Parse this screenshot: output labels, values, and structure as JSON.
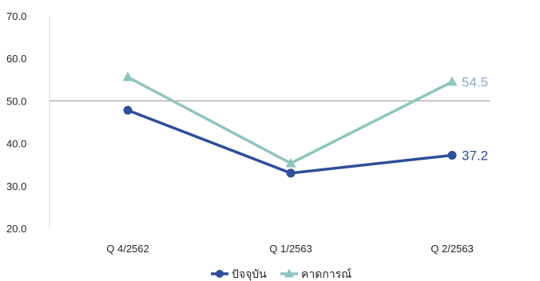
{
  "chart_data": {
    "type": "line",
    "categories": [
      "Q 4/2562",
      "Q 1/2563",
      "Q 2/2563"
    ],
    "series": [
      {
        "name": "ปัจจุบัน",
        "values": [
          47.8,
          33.0,
          37.2
        ],
        "color": "#2E4D9B",
        "marker": "circle"
      },
      {
        "name": "คาดการณ์",
        "values": [
          55.6,
          35.3,
          54.5
        ],
        "color": "#8FC5BF",
        "marker": "triangle"
      }
    ],
    "yticks": [
      "20.0",
      "30.0",
      "40.0",
      "50.0",
      "60.0",
      "70.0"
    ],
    "ylim": [
      20,
      70
    ],
    "reference_line": {
      "value": 50,
      "color": "#A6A6A6"
    },
    "data_labels": [
      {
        "series": 1,
        "index": 2,
        "text": "54.5",
        "color": "#8FA8C8"
      },
      {
        "series": 0,
        "index": 2,
        "text": "37.2",
        "color": "#2E4D9B"
      }
    ],
    "legend": {
      "position": "bottom"
    },
    "grid": false
  }
}
